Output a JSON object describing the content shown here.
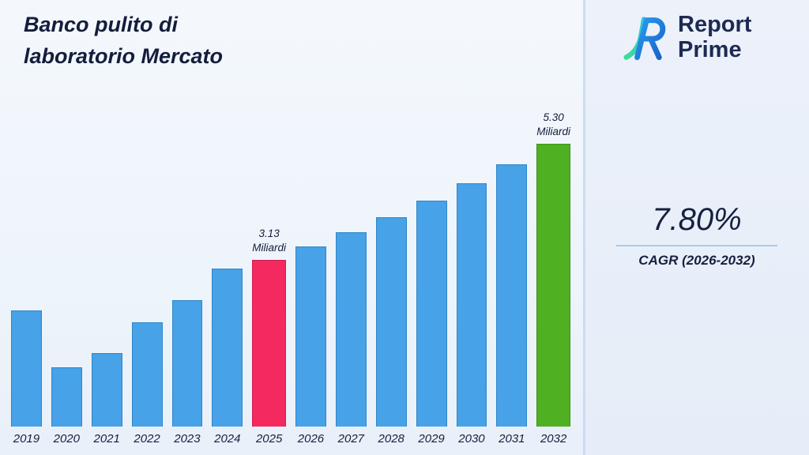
{
  "title": "Banco pulito di\nlaboratorio Mercato",
  "logo": {
    "line1": "Report",
    "line2": "Prime"
  },
  "stats": {
    "cagr_value": "7.80%",
    "cagr_label": "CAGR (2026-2032)"
  },
  "chart_data": {
    "type": "bar",
    "title": "Banco pulito di laboratorio Mercato",
    "unit": "Miliardi",
    "ylim": [
      0,
      5.3
    ],
    "grid": false,
    "legend": "none",
    "categories": [
      "2019",
      "2020",
      "2021",
      "2022",
      "2023",
      "2024",
      "2025",
      "2026",
      "2027",
      "2028",
      "2029",
      "2030",
      "2031",
      "2032"
    ],
    "values": [
      2.18,
      1.11,
      1.38,
      1.95,
      2.37,
      2.96,
      3.13,
      3.37,
      3.64,
      3.92,
      4.23,
      4.56,
      4.92,
      5.3
    ],
    "annotations": [
      {
        "year": "2025",
        "label": "3.13\nMiliardi"
      },
      {
        "year": "2032",
        "label": "5.30\nMiliardi"
      }
    ],
    "bars": [
      {
        "year": "2019",
        "value": 2.18,
        "color": "blue"
      },
      {
        "year": "2020",
        "value": 1.11,
        "color": "blue"
      },
      {
        "year": "2021",
        "value": 1.38,
        "color": "blue"
      },
      {
        "year": "2022",
        "value": 1.95,
        "color": "blue"
      },
      {
        "year": "2023",
        "value": 2.37,
        "color": "blue"
      },
      {
        "year": "2024",
        "value": 2.96,
        "color": "blue"
      },
      {
        "year": "2025",
        "value": 3.13,
        "color": "pink",
        "label": "3.13\nMiliardi"
      },
      {
        "year": "2026",
        "value": 3.37,
        "color": "blue"
      },
      {
        "year": "2027",
        "value": 3.64,
        "color": "blue"
      },
      {
        "year": "2028",
        "value": 3.92,
        "color": "blue"
      },
      {
        "year": "2029",
        "value": 4.23,
        "color": "blue"
      },
      {
        "year": "2030",
        "value": 4.56,
        "color": "blue"
      },
      {
        "year": "2031",
        "value": 4.92,
        "color": "blue"
      },
      {
        "year": "2032",
        "value": 5.3,
        "color": "green",
        "label": "5.30\nMiliardi"
      }
    ],
    "colors": {
      "blue": "#47a2e7",
      "pink": "#f42960",
      "green": "#4fb022"
    },
    "border_colors": {
      "blue": "#2f86c8",
      "pink": "#cf1c4d",
      "green": "#3f9118"
    }
  }
}
